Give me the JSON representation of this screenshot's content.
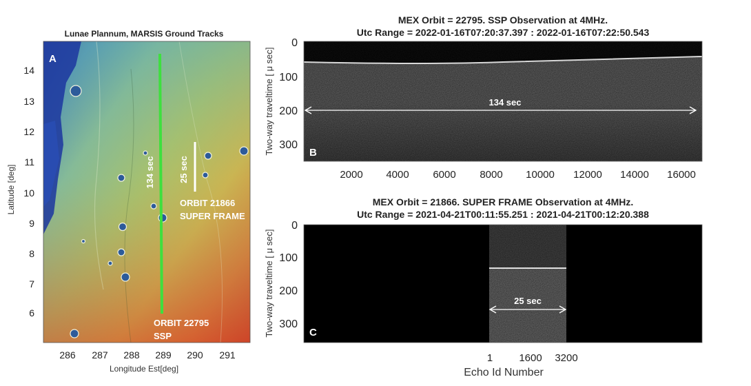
{
  "map": {
    "title": "Lunae Plannum, MARSIS Ground Tracks",
    "panel_label": "A",
    "xlabel": "Longitude Est[deg]",
    "ylabel": "Latitude [deg]",
    "x_ticks": [
      "286",
      "287",
      "288",
      "289",
      "290",
      "291"
    ],
    "y_ticks": [
      "14",
      "13",
      "12",
      "11",
      "10",
      "9",
      "8",
      "7",
      "6"
    ],
    "track_ssp_color": "#3ee03e",
    "scalebar_color": "#ffffff",
    "label_134": "134 sec",
    "label_25": "25 sec",
    "orbit_super_line1": "ORBIT 21866",
    "orbit_super_line2": "SUPER FRAME",
    "orbit_ssp_line1": "ORBIT 22795",
    "orbit_ssp_line2": "SSP"
  },
  "radargram_b": {
    "title_line1": "MEX Orbit = 22795. SSP Observation at 4MHz.",
    "title_line2": "Utc Range = 2022-01-16T07:20:37.397 : 2022-01-16T07:22:50.543",
    "panel_label": "B",
    "ylabel": "Two-way traveltime [ μ sec]",
    "y_ticks": [
      "0",
      "100",
      "200",
      "300"
    ],
    "x_ticks": [
      "2000",
      "4000",
      "6000",
      "8000",
      "10000",
      "12000",
      "14000",
      "16000"
    ],
    "duration_label": "134 sec"
  },
  "radargram_c": {
    "title_line1": "MEX Orbit = 21866. SUPER FRAME Observation at 4MHz.",
    "title_line2": "Utc Range = 2021-04-21T00:11:55.251 : 2021-04-21T00:12:20.388",
    "panel_label": "C",
    "ylabel": "Two-way traveltime [ μ sec]",
    "y_ticks": [
      "0",
      "100",
      "200",
      "300"
    ],
    "x_ticks": [
      "1",
      "1600",
      "3200"
    ],
    "xlabel": "Echo Id Number",
    "duration_label": "25 sec"
  }
}
